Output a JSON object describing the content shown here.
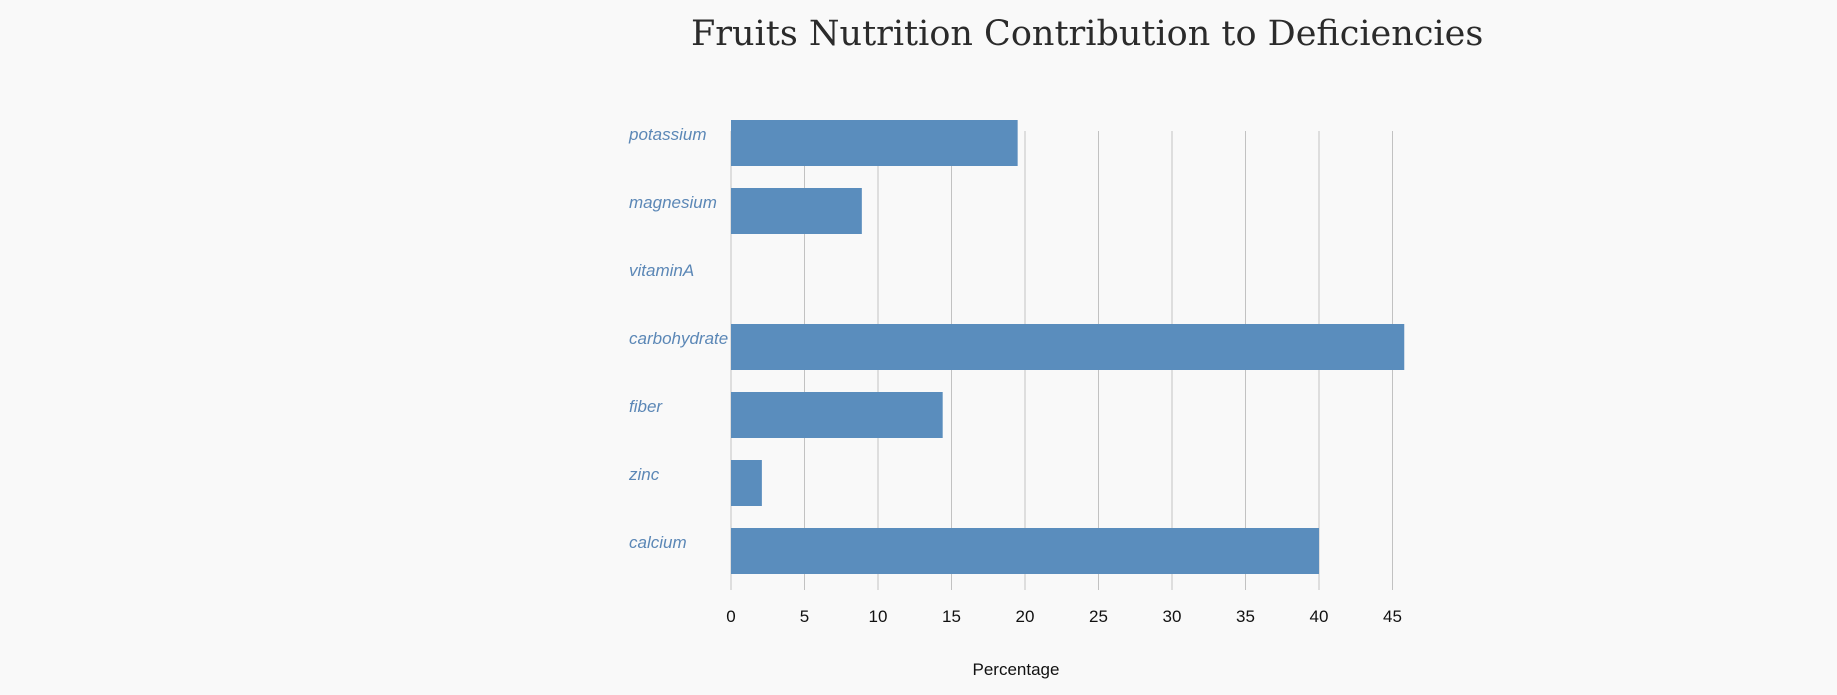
{
  "chart_data": {
    "type": "bar",
    "orientation": "horizontal",
    "title": "Fruits Nutrition Contribution to Deficiencies",
    "xlabel": "Percentage",
    "ylabel": "",
    "categories": [
      "potassium",
      "magnesium",
      "vitaminA",
      "carbohydrate",
      "fiber",
      "zinc",
      "calcium"
    ],
    "values": [
      19.5,
      8.9,
      0,
      45.8,
      14.4,
      2.1,
      40.0
    ],
    "xlim": [
      0,
      45.8
    ],
    "x_ticks": [
      0,
      5,
      10,
      15,
      20,
      25,
      30,
      35,
      40,
      45
    ],
    "grid": true,
    "legend": "none",
    "bar_color": "#5a8dbd",
    "label_color": "#5b87b6"
  }
}
